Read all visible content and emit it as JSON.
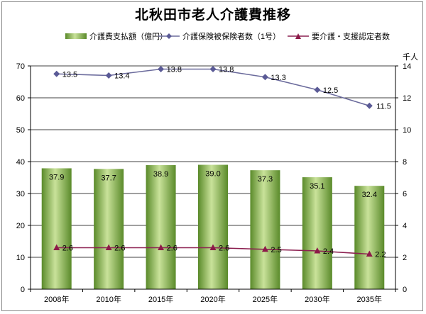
{
  "chart_data": {
    "type": "bar",
    "title": "北秋田市老人介護費推移",
    "categories": [
      "2008年",
      "2010年",
      "2015年",
      "2020年",
      "2025年",
      "2030年",
      "2035年"
    ],
    "series": [
      {
        "name": "介護費支払額（億円）",
        "type": "bar",
        "axis": "left",
        "values": [
          37.9,
          37.7,
          38.9,
          39.0,
          37.3,
          35.1,
          32.4
        ],
        "labels": [
          "37.9",
          "37.7",
          "38.9",
          "39.0",
          "37.3",
          "35.1",
          "32.4"
        ]
      },
      {
        "name": "介護保険被保険者数（1号）",
        "type": "line",
        "axis": "right",
        "values": [
          13.5,
          13.4,
          13.8,
          13.8,
          13.3,
          12.5,
          11.5
        ],
        "labels": [
          "13.5",
          "13.4",
          "13.8",
          "13.8",
          "13.3",
          "12.5",
          "11.5"
        ]
      },
      {
        "name": "要介護・支援認定者数",
        "type": "line",
        "axis": "right",
        "values": [
          2.6,
          2.6,
          2.6,
          2.6,
          2.5,
          2.4,
          2.2
        ],
        "labels": [
          "2.6",
          "2.6",
          "2.6",
          "2.6",
          "2.5",
          "2.4",
          "2.2"
        ]
      }
    ],
    "y_left": {
      "range": [
        0,
        70
      ],
      "ticks": [
        "0",
        "10",
        "20",
        "30",
        "40",
        "50",
        "60",
        "70"
      ]
    },
    "y_right": {
      "range": [
        0,
        14
      ],
      "ticks": [
        "0",
        "2",
        "4",
        "6",
        "8",
        "10",
        "12",
        "14"
      ],
      "unit": "千人"
    },
    "grid": true,
    "legend": "top",
    "colors": {
      "bar_light": "#c9e29a",
      "bar_dark": "#5a8a2a",
      "line1": "#6b6b9c",
      "marker1": "#5a5a96",
      "line2": "#8c2050",
      "marker2": "#8c1a48",
      "grid": "#000000"
    }
  }
}
